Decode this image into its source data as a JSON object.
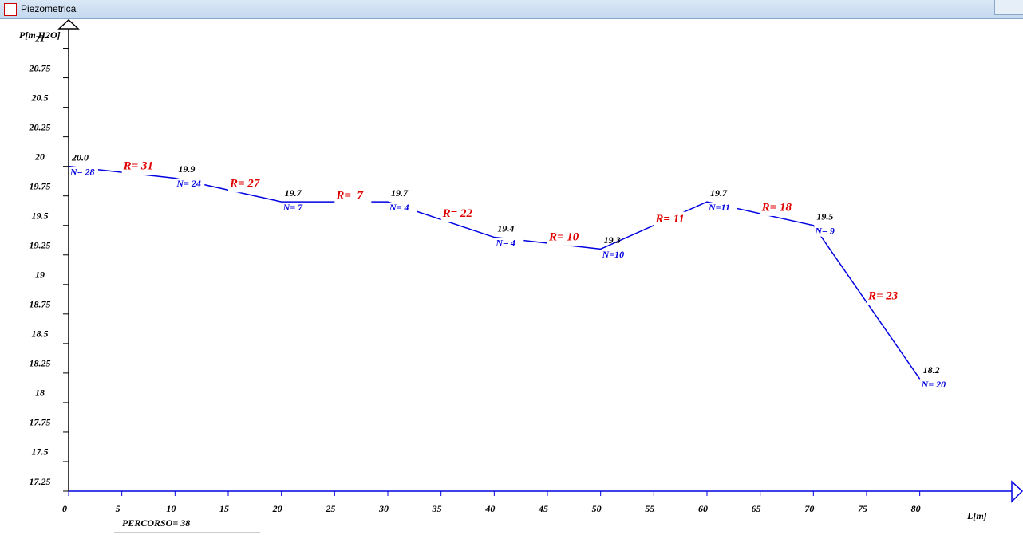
{
  "window": {
    "title": "Piezometrica"
  },
  "chart_data": {
    "type": "line",
    "y_label": "P[m H2O]",
    "x_label": "L[m]",
    "footer": "PERCORSO= 38",
    "x": [
      0,
      10,
      20,
      30,
      40,
      50,
      60,
      70,
      80
    ],
    "values": [
      20.0,
      19.9,
      19.7,
      19.7,
      19.4,
      19.3,
      19.7,
      19.5,
      18.2
    ],
    "value_labels": [
      "20.0",
      "19.9",
      "19.7",
      "19.7",
      "19.4",
      "19.3",
      "19.7",
      "19.5",
      "18.2"
    ],
    "node_labels": [
      "N= 28",
      "N= 24",
      "N= 7",
      "N= 4",
      "N= 4",
      "N=10",
      "N=11",
      "N= 9",
      "N= 20"
    ],
    "segment_labels": [
      "R= 31",
      "R= 27",
      "R=  7",
      "R= 22",
      "R= 10",
      "R= 11",
      "R= 18",
      "R= 23"
    ],
    "color": "#0000e0",
    "segment_label_color": "#e00000",
    "xlim": [
      0,
      88.8
    ],
    "xticks": [
      0,
      5,
      10,
      15,
      20,
      25,
      30,
      35,
      40,
      45,
      50,
      55,
      60,
      65,
      70,
      75,
      80
    ],
    "ylim": [
      17.25,
      21.24
    ],
    "yticks": [
      17.25,
      17.5,
      17.75,
      18,
      18.25,
      18.5,
      18.75,
      19,
      19.25,
      19.5,
      19.75,
      20,
      20.25,
      20.5,
      20.75,
      21
    ]
  }
}
